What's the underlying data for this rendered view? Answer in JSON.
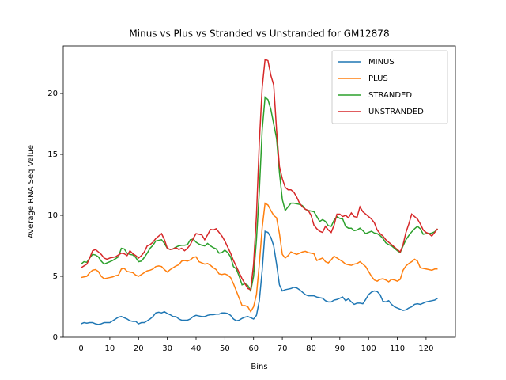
{
  "chart_data": {
    "type": "line",
    "title": "Minus vs Plus vs Stranded vs Unstranded for GM12878",
    "xlabel": "Bins",
    "ylabel": "Average RNA Seq Value",
    "x": [
      0,
      1,
      2,
      3,
      4,
      5,
      6,
      7,
      8,
      9,
      10,
      11,
      12,
      13,
      14,
      15,
      16,
      17,
      18,
      19,
      20,
      21,
      22,
      23,
      24,
      25,
      26,
      27,
      28,
      29,
      30,
      31,
      32,
      33,
      34,
      35,
      36,
      37,
      38,
      39,
      40,
      41,
      42,
      43,
      44,
      45,
      46,
      47,
      48,
      49,
      50,
      51,
      52,
      53,
      54,
      55,
      56,
      57,
      58,
      59,
      60,
      61,
      62,
      63,
      64,
      65,
      66,
      67,
      68,
      69,
      70,
      71,
      72,
      73,
      74,
      75,
      76,
      77,
      78,
      79,
      80,
      81,
      82,
      83,
      84,
      85,
      86,
      87,
      88,
      89,
      90,
      91,
      92,
      93,
      94,
      95,
      96,
      97,
      98,
      99,
      100,
      101,
      102,
      103,
      104,
      105,
      106,
      107,
      108,
      109,
      110,
      111,
      112,
      113,
      114,
      115,
      116,
      117,
      118,
      119,
      120,
      121,
      122,
      123,
      124
    ],
    "xlim": [
      -6.2,
      130.2
    ],
    "xticks": [
      0,
      10,
      20,
      30,
      40,
      50,
      60,
      70,
      80,
      90,
      100,
      110,
      120
    ],
    "ylim": [
      0,
      23.9
    ],
    "yticks": [
      0,
      5,
      10,
      15,
      20
    ],
    "grid": false,
    "legend": "upper right",
    "series": [
      {
        "name": "MINUS",
        "color": "#1f77b4",
        "values": [
          1.1,
          1.2,
          1.15,
          1.2,
          1.2,
          1.1,
          1.05,
          1.1,
          1.2,
          1.2,
          1.2,
          1.35,
          1.5,
          1.65,
          1.7,
          1.6,
          1.5,
          1.35,
          1.3,
          1.3,
          1.1,
          1.2,
          1.2,
          1.35,
          1.5,
          1.7,
          2.0,
          2.05,
          2.0,
          2.1,
          1.95,
          1.85,
          1.7,
          1.7,
          1.5,
          1.4,
          1.4,
          1.4,
          1.5,
          1.7,
          1.8,
          1.75,
          1.7,
          1.7,
          1.8,
          1.85,
          1.85,
          1.9,
          1.9,
          2.0,
          2.0,
          1.95,
          1.8,
          1.5,
          1.35,
          1.4,
          1.55,
          1.65,
          1.7,
          1.6,
          1.5,
          1.8,
          3.0,
          5.5,
          8.7,
          8.6,
          8.2,
          7.5,
          6.0,
          4.3,
          3.8,
          3.9,
          3.95,
          4.0,
          4.1,
          4.05,
          3.9,
          3.7,
          3.5,
          3.4,
          3.4,
          3.4,
          3.3,
          3.25,
          3.2,
          3.0,
          2.9,
          2.9,
          3.05,
          3.1,
          3.2,
          3.3,
          3.0,
          3.15,
          2.9,
          2.7,
          2.8,
          2.8,
          2.75,
          3.1,
          3.5,
          3.7,
          3.8,
          3.75,
          3.5,
          2.95,
          2.9,
          3.0,
          2.7,
          2.5,
          2.4,
          2.3,
          2.2,
          2.25,
          2.4,
          2.5,
          2.7,
          2.75,
          2.7,
          2.8,
          2.9,
          2.95,
          3.0,
          3.05,
          3.2
        ]
      },
      {
        "name": "PLUS",
        "color": "#ff7f0e",
        "values": [
          4.9,
          4.95,
          5.0,
          5.3,
          5.5,
          5.55,
          5.4,
          5.0,
          4.8,
          4.85,
          4.9,
          4.95,
          5.05,
          5.1,
          5.6,
          5.65,
          5.4,
          5.35,
          5.3,
          5.1,
          5.0,
          5.15,
          5.3,
          5.45,
          5.5,
          5.6,
          5.8,
          5.85,
          5.8,
          5.55,
          5.35,
          5.55,
          5.7,
          5.85,
          5.95,
          6.25,
          6.3,
          6.25,
          6.35,
          6.55,
          6.6,
          6.2,
          6.1,
          6.0,
          6.05,
          5.9,
          5.7,
          5.55,
          5.2,
          5.15,
          5.2,
          5.1,
          4.9,
          4.4,
          3.8,
          3.2,
          2.6,
          2.6,
          2.5,
          2.1,
          2.5,
          3.5,
          6.0,
          9.0,
          11.0,
          10.85,
          10.4,
          10.0,
          9.8,
          8.5,
          6.8,
          6.5,
          6.7,
          7.0,
          6.9,
          6.8,
          6.9,
          7.0,
          7.05,
          6.95,
          6.9,
          6.85,
          6.3,
          6.4,
          6.5,
          6.2,
          6.1,
          6.35,
          6.65,
          6.5,
          6.35,
          6.2,
          6.0,
          5.95,
          5.9,
          6.0,
          6.05,
          6.2,
          6.0,
          5.8,
          5.4,
          5.0,
          4.7,
          4.6,
          4.75,
          4.8,
          4.7,
          4.55,
          4.75,
          4.7,
          4.6,
          4.75,
          5.5,
          5.85,
          6.05,
          6.2,
          6.4,
          6.25,
          5.7,
          5.65,
          5.6,
          5.55,
          5.5,
          5.6,
          5.6
        ]
      },
      {
        "name": "STRANDED",
        "color": "#2ca02c",
        "values": [
          6.0,
          6.2,
          6.15,
          6.5,
          6.8,
          6.75,
          6.6,
          6.25,
          6.0,
          6.1,
          6.2,
          6.3,
          6.45,
          6.6,
          7.3,
          7.25,
          6.9,
          6.8,
          6.75,
          6.55,
          6.2,
          6.25,
          6.55,
          6.9,
          7.3,
          7.55,
          7.9,
          7.95,
          8.0,
          7.7,
          7.3,
          7.2,
          7.25,
          7.4,
          7.5,
          7.55,
          7.55,
          7.6,
          8.0,
          8.05,
          7.8,
          7.65,
          7.55,
          7.5,
          7.7,
          7.5,
          7.35,
          7.25,
          6.9,
          6.95,
          7.15,
          6.95,
          6.6,
          5.8,
          5.6,
          5.0,
          4.3,
          4.4,
          4.25,
          3.8,
          5.0,
          8.0,
          12.0,
          17.0,
          19.7,
          19.5,
          18.7,
          17.5,
          16.3,
          13.5,
          11.3,
          10.4,
          10.7,
          11.0,
          11.0,
          10.95,
          10.9,
          10.8,
          10.5,
          10.4,
          10.35,
          10.3,
          9.9,
          9.5,
          9.65,
          9.5,
          9.15,
          9.1,
          9.6,
          9.9,
          9.75,
          9.7,
          9.1,
          8.95,
          8.95,
          8.75,
          8.8,
          8.95,
          8.75,
          8.5,
          8.6,
          8.7,
          8.55,
          8.5,
          8.35,
          8.1,
          7.75,
          7.6,
          7.5,
          7.3,
          7.1,
          6.95,
          7.5,
          8.0,
          8.35,
          8.65,
          8.9,
          9.1,
          8.9,
          8.45,
          8.5,
          8.5,
          8.55,
          8.65,
          8.9
        ]
      },
      {
        "name": "UNSTRANDED",
        "color": "#d62728",
        "values": [
          5.7,
          5.85,
          6.0,
          6.5,
          7.1,
          7.2,
          7.0,
          6.8,
          6.5,
          6.4,
          6.5,
          6.55,
          6.6,
          6.75,
          6.9,
          6.85,
          6.7,
          7.1,
          6.85,
          6.7,
          6.5,
          6.7,
          7.0,
          7.5,
          7.6,
          7.8,
          8.1,
          8.3,
          8.5,
          8.0,
          7.3,
          7.2,
          7.25,
          7.35,
          7.2,
          7.3,
          7.1,
          7.3,
          7.6,
          8.1,
          8.5,
          8.45,
          8.4,
          8.0,
          8.4,
          8.85,
          8.8,
          8.9,
          8.6,
          8.3,
          7.9,
          7.4,
          6.9,
          6.3,
          5.8,
          5.3,
          4.8,
          4.4,
          4.0,
          3.9,
          6.0,
          10.0,
          16.0,
          20.5,
          22.8,
          22.7,
          21.5,
          20.7,
          17.0,
          14.0,
          13.0,
          12.3,
          12.1,
          12.1,
          11.9,
          11.5,
          11.0,
          10.7,
          10.5,
          10.4,
          10.0,
          9.2,
          8.9,
          8.7,
          8.6,
          9.1,
          8.8,
          8.6,
          9.2,
          10.1,
          10.1,
          9.9,
          10.0,
          9.8,
          10.2,
          9.9,
          9.85,
          10.7,
          10.3,
          10.1,
          9.9,
          9.7,
          9.4,
          8.8,
          8.5,
          8.3,
          8.0,
          7.8,
          7.6,
          7.4,
          7.2,
          7.0,
          7.6,
          8.6,
          9.3,
          10.1,
          9.9,
          9.7,
          9.3,
          8.8,
          8.6,
          8.5,
          8.3,
          8.6,
          8.9
        ]
      }
    ]
  }
}
